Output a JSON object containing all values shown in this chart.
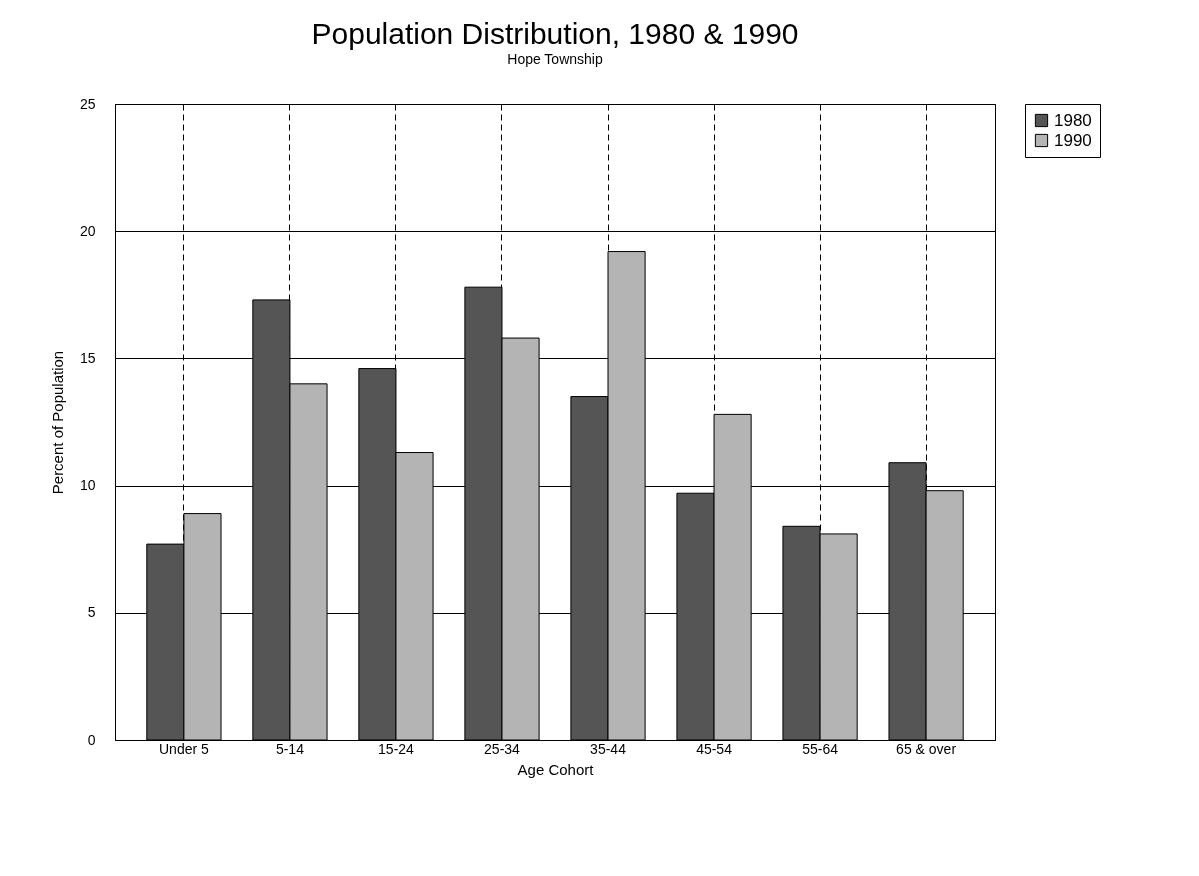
{
  "chart_data": {
    "type": "bar",
    "title": "Population Distribution, 1980 & 1990",
    "subtitle": "Hope Township",
    "xlabel": "Age Cohort",
    "ylabel": "Percent of Population",
    "categories": [
      "Under 5",
      "5-14",
      "15-24",
      "25-34",
      "35-44",
      "45-54",
      "55-64",
      "65 & over"
    ],
    "series": [
      {
        "name": "1980",
        "color": "#555555",
        "values": [
          7.7,
          17.3,
          14.6,
          17.8,
          13.5,
          9.7,
          8.4,
          10.9
        ]
      },
      {
        "name": "1990",
        "color": "#b4b4b4",
        "values": [
          8.9,
          14.0,
          11.3,
          15.8,
          19.2,
          12.8,
          8.1,
          9.8
        ]
      }
    ],
    "ylim": [
      0,
      25
    ],
    "yticks": [
      0,
      5,
      10,
      15,
      20,
      25
    ],
    "grid": true,
    "legend": "right"
  }
}
